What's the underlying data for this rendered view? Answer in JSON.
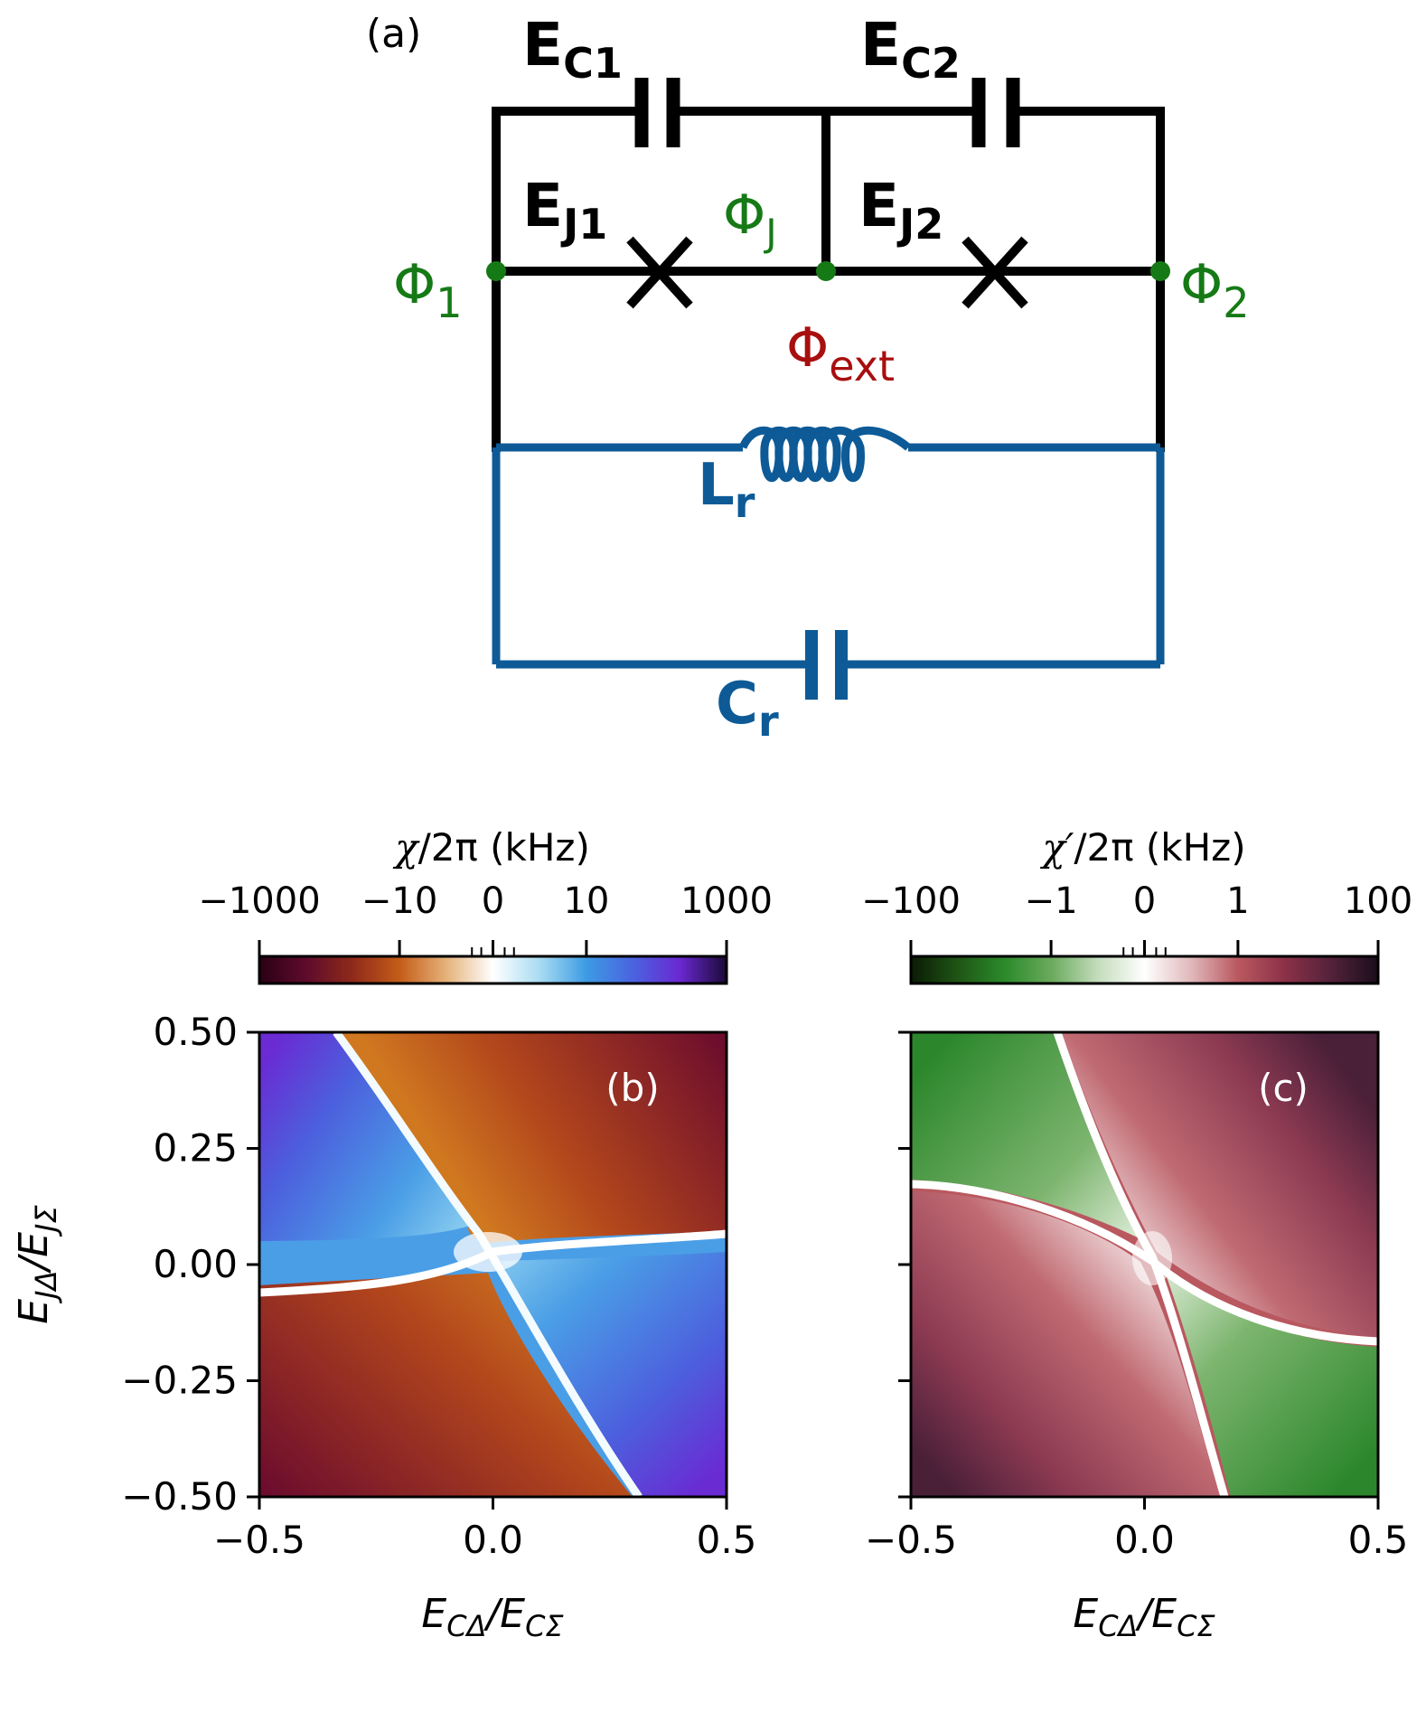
{
  "panel_a": {
    "label": "(a)",
    "node_labels": {
      "phi1_main": "Φ",
      "phi1_sub": "1",
      "phij_main": "Φ",
      "phij_sub": "J",
      "phi2_main": "Φ",
      "phi2_sub": "2"
    },
    "element_labels": {
      "ec1_main": "E",
      "ec1_sub": "C1",
      "ec2_main": "E",
      "ec2_sub": "C2",
      "ej1_main": "E",
      "ej1_sub": "J1",
      "ej2_main": "E",
      "ej2_sub": "J2",
      "phiext_main": "Φ",
      "phiext_sub": "ext",
      "lr_main": "L",
      "lr_sub": "r",
      "cr_main": "C",
      "cr_sub": "r"
    },
    "colors": {
      "circuit": "#000000",
      "nodes": "#157a15",
      "flux": "#a80f0f",
      "resonator": "#0d5a97"
    }
  },
  "panel_b": {
    "label": "(b)",
    "colorbar": {
      "label_greek": "χ",
      "label_rest": "/2π (kHz)",
      "ticks": [
        "−1000",
        "−10",
        "0",
        "10",
        "1000"
      ],
      "colors": [
        "#2a0015",
        "#5e0b2b",
        "#8f2a1a",
        "#c45c18",
        "#e5b27a",
        "#ffffff",
        "#a9dcf2",
        "#3d9be3",
        "#4a63e0",
        "#6a28d2",
        "#1a0a35"
      ]
    }
  },
  "panel_c": {
    "label": "(c)",
    "colorbar": {
      "label_greek": "χ′",
      "label_rest": "/2π (kHz)",
      "ticks": [
        "−100",
        "−1",
        "0",
        "1",
        "100"
      ],
      "colors": [
        "#0a1a05",
        "#1f5515",
        "#2a8a2a",
        "#6aaa5c",
        "#c4dcbc",
        "#ffffff",
        "#e0b8bb",
        "#b9585f",
        "#8b3148",
        "#53223a",
        "#1a0d1c"
      ]
    }
  },
  "axes": {
    "x_label_main": "E",
    "x_label_sub": "CΔ",
    "x_label_div": "/",
    "x_label_main2": "E",
    "x_label_sub2": "CΣ",
    "y_label_main": "E",
    "y_label_sub": "JΔ",
    "y_label_div": "/",
    "y_label_main2": "E",
    "y_label_sub2": "JΣ",
    "x_ticks": [
      "−0.5",
      "0.0",
      "0.5"
    ],
    "y_ticks": [
      "0.50",
      "0.25",
      "0.00",
      "−0.25",
      "−0.50"
    ]
  },
  "chart_data": [
    {
      "type": "heatmap",
      "title": "(b)",
      "xlabel": "E_CΔ/E_CΣ",
      "ylabel": "E_JΔ/E_JΣ",
      "xlim": [
        -0.5,
        0.5
      ],
      "ylim": [
        -0.5,
        0.5
      ],
      "colorbar_label": "χ/2π (kHz)",
      "colorbar_ticks": [
        -1000,
        -10,
        0,
        10,
        1000
      ],
      "colorbar_scale": "symlog",
      "zero_contours": [
        {
          "x": [
            -0.31,
            -0.2,
            -0.08,
            0.0,
            0.1,
            0.22,
            0.33
          ],
          "y": [
            0.5,
            0.33,
            0.13,
            0.05,
            -0.16,
            -0.33,
            -0.5
          ]
        },
        {
          "x": [
            -0.5,
            -0.3,
            -0.1,
            0.0,
            0.1,
            0.3,
            0.5
          ],
          "y": [
            -0.06,
            -0.05,
            -0.03,
            0.0,
            0.03,
            0.05,
            0.065
          ]
        }
      ],
      "regions": {
        "top_right": "large negative",
        "bottom_left": "large negative",
        "top_left": "large positive",
        "bottom_right": "large positive"
      }
    },
    {
      "type": "heatmap",
      "title": "(c)",
      "xlabel": "E_CΔ/E_CΣ",
      "ylabel": "E_JΔ/E_JΣ",
      "xlim": [
        -0.5,
        0.5
      ],
      "ylim": [
        -0.5,
        0.5
      ],
      "colorbar_label": "χ′/2π (kHz)",
      "colorbar_ticks": [
        -100,
        -1,
        0,
        1,
        100
      ],
      "colorbar_scale": "symlog",
      "zero_contours": [
        {
          "x": [
            -0.18,
            -0.1,
            0.0,
            0.1,
            0.18
          ],
          "y": [
            0.5,
            0.3,
            0.04,
            -0.3,
            -0.5
          ]
        },
        {
          "x": [
            -0.5,
            -0.25,
            0.0,
            0.25,
            0.5
          ],
          "y": [
            0.17,
            0.12,
            0.0,
            -0.12,
            -0.17
          ]
        }
      ],
      "regions": {
        "top_left": "negative",
        "bottom_right": "negative",
        "top_right": "positive",
        "bottom_left": "positive"
      }
    }
  ]
}
